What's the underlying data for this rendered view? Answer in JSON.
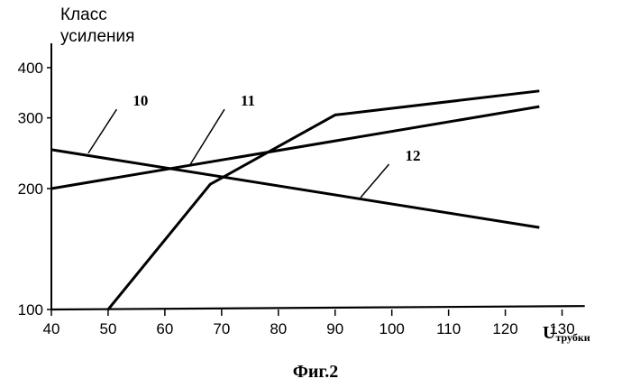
{
  "chart_data": {
    "type": "line",
    "caption": "Фиг.2",
    "ylabel_lines": [
      "Класс",
      "усиления"
    ],
    "xlabel_main": "U",
    "xlabel_sub": "трубки",
    "x_ticks": [
      40,
      50,
      60,
      70,
      80,
      90,
      100,
      110,
      120,
      130
    ],
    "y_ticks": [
      100,
      200,
      300,
      400
    ],
    "xlim": [
      40,
      135
    ],
    "ylim": [
      100,
      400
    ],
    "y_scale": "log",
    "grid": false,
    "line_color": "#000000",
    "series": [
      {
        "name": "10",
        "x": [
          40,
          126
        ],
        "y": [
          250,
          160
        ]
      },
      {
        "name": "11",
        "x": [
          40,
          126
        ],
        "y": [
          200,
          320
        ]
      },
      {
        "name": "12",
        "x": [
          50,
          68,
          90,
          126
        ],
        "y": [
          100,
          205,
          305,
          350
        ]
      }
    ],
    "baseline": {
      "x": [
        40,
        134
      ],
      "y": [
        100,
        102
      ]
    },
    "leaders": [
      {
        "label": "10",
        "from": [
          46.5,
          245
        ],
        "to": [
          51.5,
          315
        ]
      },
      {
        "label": "11",
        "from": [
          64.5,
          230
        ],
        "to": [
          70.5,
          315
        ]
      },
      {
        "label": "12",
        "from": [
          94.5,
          190
        ],
        "to": [
          99.5,
          230
        ]
      }
    ]
  }
}
